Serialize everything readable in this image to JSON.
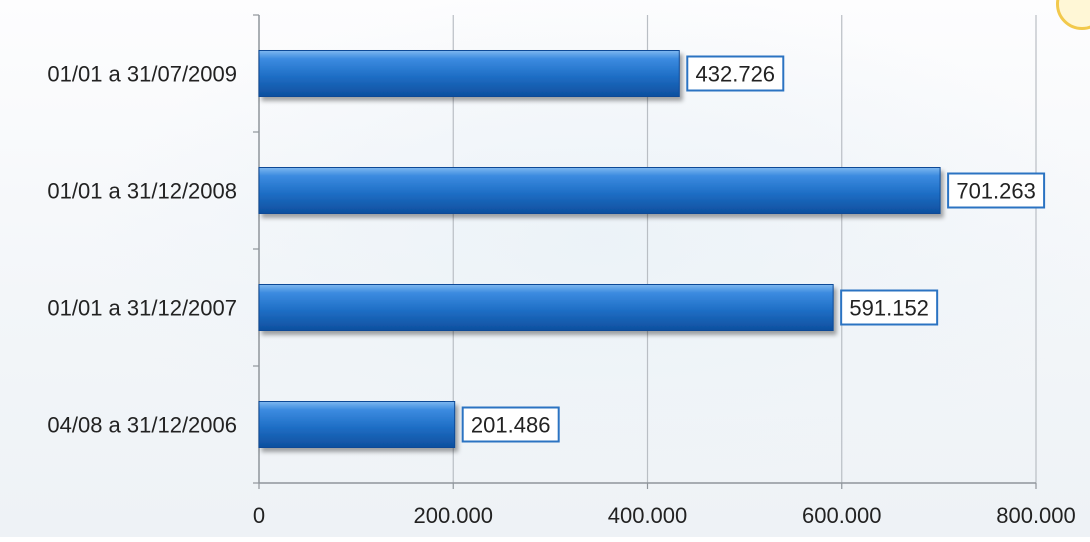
{
  "chart_data": {
    "type": "bar",
    "orientation": "horizontal",
    "categories": [
      "01/01 a 31/07/2009",
      "01/01 a 31/12/2008",
      "01/01 a 31/12/2007",
      "04/08 a 31/12/2006"
    ],
    "values": [
      432726,
      701263,
      591152,
      201486
    ],
    "value_labels": [
      "432.726",
      "701.263",
      "591.152",
      "201.486"
    ],
    "xlim": [
      0,
      800000
    ],
    "x_ticks": [
      0,
      200000,
      400000,
      600000,
      800000
    ],
    "x_tick_labels": [
      "0",
      "200.000",
      "400.000",
      "600.000",
      "800.000"
    ],
    "title": "",
    "xlabel": "",
    "ylabel": "",
    "grid": "vertical",
    "legend": "none",
    "colors": {
      "bar": "#1f6fc6",
      "bar_light": "#5aa3ea",
      "bar_dark": "#0d4a96",
      "label_border": "#2b73c2",
      "grid": "#b9bec4",
      "axis": "#8f959b",
      "text": "#222222"
    }
  }
}
